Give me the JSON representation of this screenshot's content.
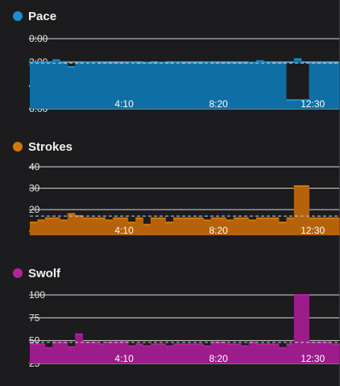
{
  "chart_data": [
    {
      "type": "area",
      "title": "Pace",
      "color": "#1a8fd1",
      "fill": "#0f6fa4",
      "marker_icon": "dot-icon",
      "inverted_y": true,
      "yticks": [
        "0:00",
        "2:00",
        "4:00",
        "6:00"
      ],
      "ytick_values": [
        0,
        120,
        240,
        360
      ],
      "ylim": [
        0,
        360
      ],
      "xticks": [
        "4:10",
        "8:20",
        "12:30"
      ],
      "xtick_values": [
        250,
        500,
        750
      ],
      "xlim": [
        0,
        820
      ],
      "average": 125,
      "x": [
        0,
        20,
        40,
        60,
        80,
        100,
        120,
        140,
        160,
        180,
        200,
        220,
        240,
        260,
        280,
        300,
        320,
        340,
        360,
        380,
        400,
        420,
        440,
        460,
        480,
        500,
        520,
        540,
        560,
        580,
        600,
        620,
        640,
        660,
        680,
        700,
        720,
        740,
        760,
        780,
        800
      ],
      "values": [
        120,
        120,
        120,
        110,
        125,
        145,
        125,
        120,
        120,
        125,
        125,
        125,
        125,
        120,
        125,
        122,
        125,
        122,
        125,
        120,
        125,
        125,
        125,
        120,
        125,
        125,
        125,
        125,
        125,
        122,
        115,
        120,
        125,
        125,
        125,
        105,
        125,
        125,
        125,
        125,
        125
      ],
      "low_gap": {
        "x_start": 680,
        "x_end": 740,
        "value": 315
      }
    },
    {
      "type": "bar",
      "title": "Strokes",
      "color": "#d4780a",
      "fill": "#b5620a",
      "marker_icon": "dot-icon",
      "yticks": [
        "40",
        "30",
        "20",
        "10"
      ],
      "ytick_values": [
        40,
        30,
        20,
        10
      ],
      "ylim": [
        8,
        40
      ],
      "xticks": [
        "4:10",
        "8:20",
        "12:30"
      ],
      "xtick_values": [
        250,
        500,
        750
      ],
      "xlim": [
        0,
        820
      ],
      "average": 17,
      "x": [
        0,
        20,
        40,
        60,
        80,
        100,
        120,
        140,
        160,
        180,
        200,
        220,
        240,
        260,
        280,
        300,
        320,
        340,
        360,
        380,
        400,
        420,
        440,
        460,
        480,
        500,
        520,
        540,
        560,
        580,
        600,
        620,
        640,
        660,
        680,
        700,
        720,
        740,
        760,
        780,
        800
      ],
      "values": [
        14,
        15,
        16,
        16,
        15,
        18,
        17,
        16,
        16,
        16,
        15,
        16,
        16,
        14,
        16,
        13,
        16,
        16,
        14,
        16,
        16,
        16,
        16,
        15,
        16,
        16,
        15,
        16,
        16,
        15,
        16,
        16,
        16,
        14,
        16,
        31,
        31,
        16,
        16,
        16,
        16
      ]
    },
    {
      "type": "bar",
      "title": "Swolf",
      "color": "#b0259e",
      "fill": "#9b1c8a",
      "marker_icon": "dot-icon",
      "yticks": [
        "100",
        "75",
        "50",
        "25"
      ],
      "ytick_values": [
        100,
        75,
        50,
        25
      ],
      "ylim": [
        25,
        100
      ],
      "xticks": [
        "4:10",
        "8:20",
        "12:30"
      ],
      "xtick_values": [
        250,
        500,
        750
      ],
      "xlim": [
        0,
        820
      ],
      "average": 48,
      "x": [
        0,
        20,
        40,
        60,
        80,
        100,
        120,
        140,
        160,
        180,
        200,
        220,
        240,
        260,
        280,
        300,
        320,
        340,
        360,
        380,
        400,
        420,
        440,
        460,
        480,
        500,
        520,
        540,
        560,
        580,
        600,
        620,
        640,
        660,
        680,
        700,
        720,
        740,
        760,
        780,
        800
      ],
      "values": [
        46,
        46,
        42,
        48,
        48,
        43,
        57,
        48,
        48,
        46,
        48,
        48,
        49,
        44,
        46,
        44,
        46,
        46,
        44,
        46,
        46,
        46,
        46,
        44,
        48,
        48,
        46,
        46,
        44,
        48,
        46,
        46,
        46,
        42,
        46,
        100,
        100,
        48,
        48,
        48,
        46
      ]
    }
  ]
}
